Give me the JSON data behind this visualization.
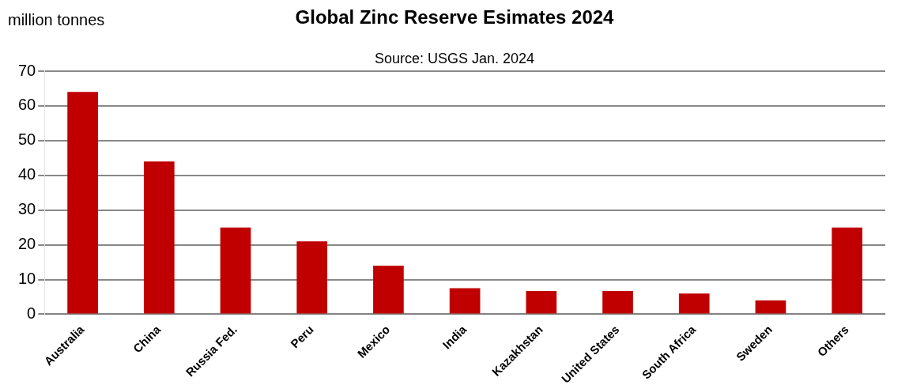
{
  "chart_data": {
    "type": "bar",
    "title": "Global Zinc Reserve Esimates 2024",
    "ylabel": "million tonnes",
    "annotations": [
      "Source: USGS  Jan. 2024"
    ],
    "categories": [
      "Australia",
      "China",
      "Russia Fed.",
      "Peru",
      "Mexico",
      "India",
      "Kazakhstan",
      "United States",
      "South Africa",
      "Sweden",
      "Others"
    ],
    "values": [
      64,
      44,
      25,
      21,
      14,
      7.5,
      6.7,
      6.7,
      6,
      4,
      25
    ],
    "color": "#c00000",
    "ylim": [
      0,
      70
    ],
    "yticks": [
      0,
      10,
      20,
      30,
      40,
      50,
      60,
      70
    ],
    "grid": "y",
    "legend": false
  }
}
